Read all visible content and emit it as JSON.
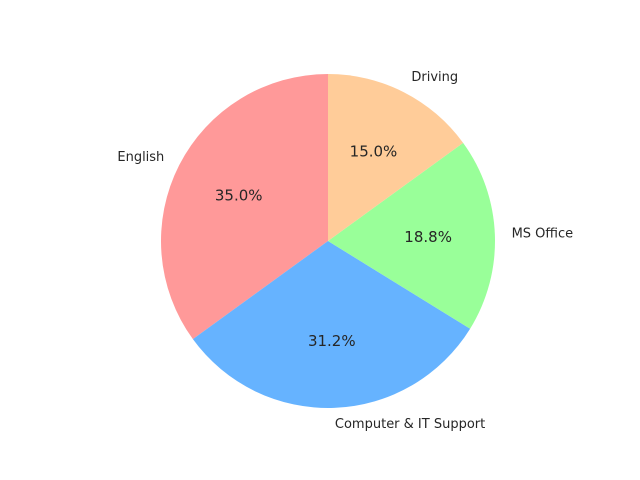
{
  "chart_data": {
    "type": "pie",
    "title": "",
    "categories": [
      "English",
      "Computer & IT Support",
      "MS Office",
      "Driving"
    ],
    "values": [
      35.0,
      31.2,
      18.8,
      15.0
    ],
    "percent_labels": [
      "35.0%",
      "31.2%",
      "18.8%",
      "15.0%"
    ],
    "colors": [
      "#ff9999",
      "#66b3ff",
      "#99ff99",
      "#ffcc99"
    ],
    "start_angle_deg": 90,
    "direction": "counterclockwise",
    "legend": "none"
  }
}
